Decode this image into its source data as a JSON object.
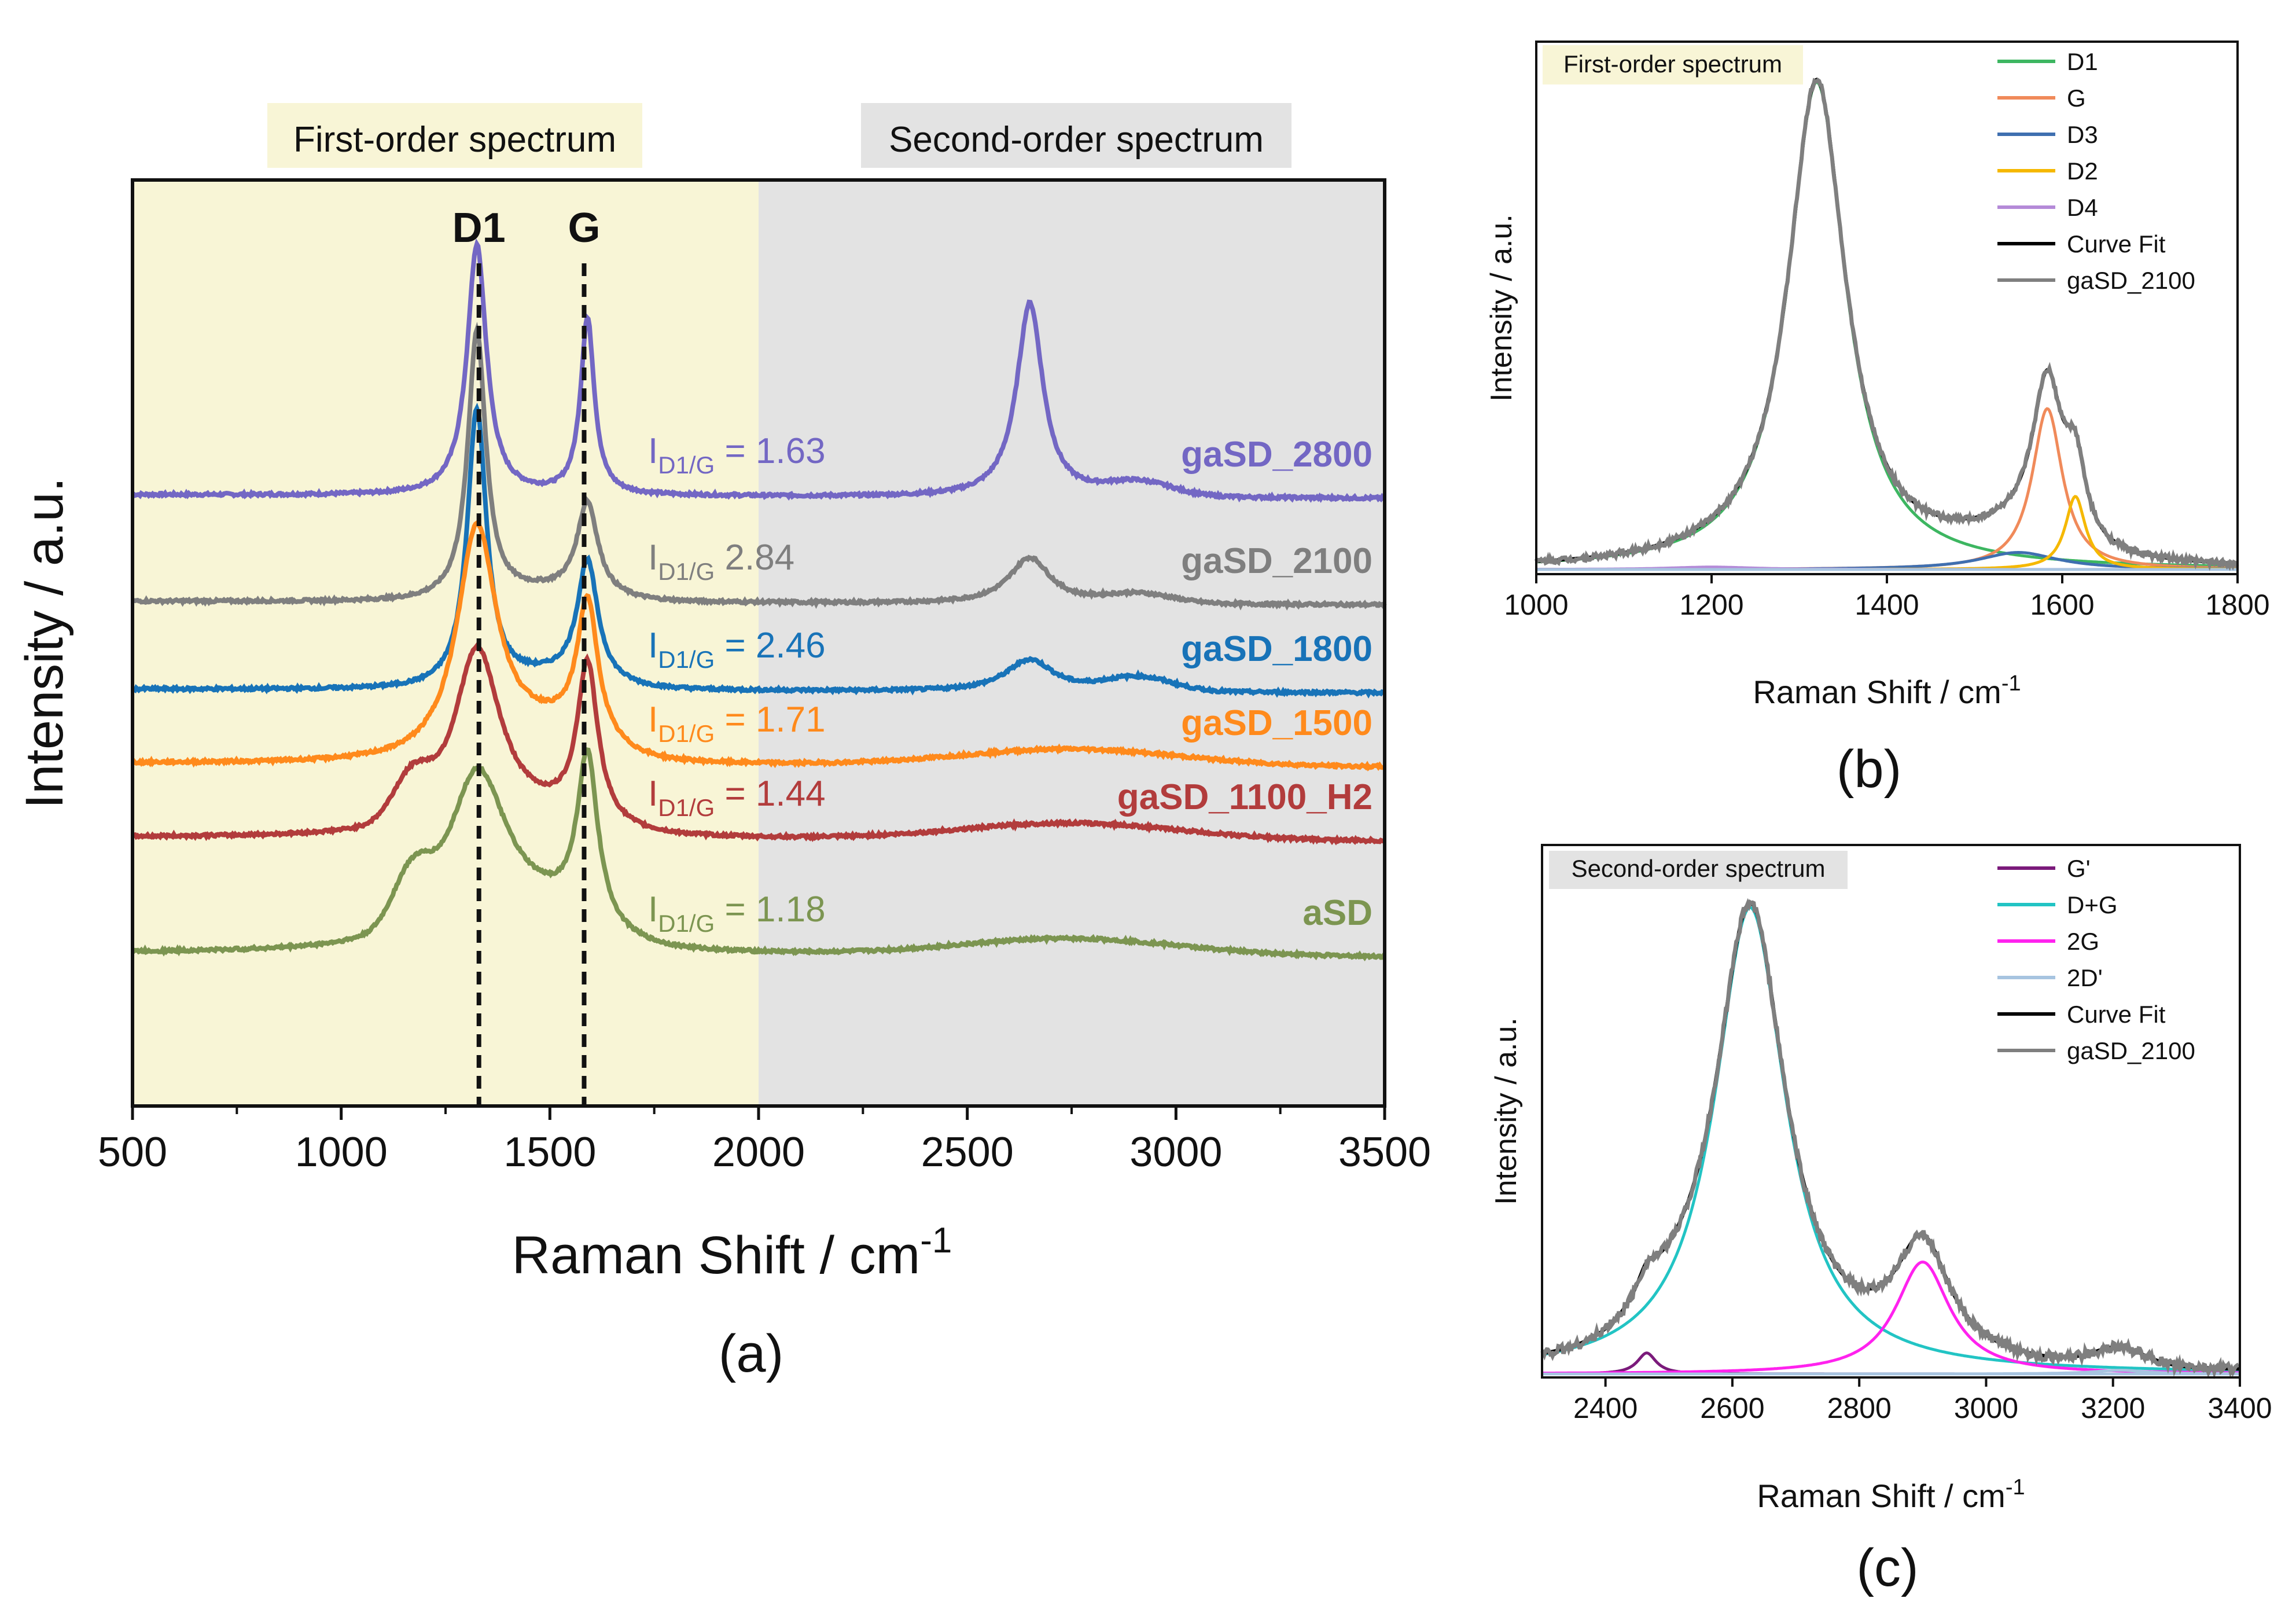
{
  "chart_data": [
    {
      "panel": "(a)",
      "type": "line",
      "xlabel": "Raman Shift / cm",
      "xlabel_sup": "-1",
      "ylabel": "Intensity / a.u.",
      "xlim": [
        500,
        3500
      ],
      "xticks": [
        "500",
        "1000",
        "1500",
        "2000",
        "2500",
        "3000",
        "3500"
      ],
      "regions": [
        {
          "label": "First-order spectrum",
          "from": 500,
          "to": 2000,
          "color": "#f8f5d6"
        },
        {
          "label": "Second-order spectrum",
          "from": 2000,
          "to": 3500,
          "color": "#e3e3e3"
        }
      ],
      "peak_markers": [
        {
          "label": "D1",
          "x": 1330
        },
        {
          "label": "G",
          "x": 1582
        }
      ],
      "ratio_prefix": "I",
      "ratio_sub": "D1/G",
      "series": [
        {
          "name": "gaSD_2800",
          "ratio": "= 1.63",
          "color": "#7367c4",
          "baseline": 0.66,
          "d1w": 28,
          "d1h": 0.27,
          "gw": 20,
          "gh": 0.19,
          "bump": 0.0,
          "shoulder": 0.0,
          "p2d": 0.21,
          "p2dw": 38,
          "pdg": 0.015
        },
        {
          "name": "gaSD_2100",
          "ratio": "2.84",
          "color": "#7f7f7f",
          "baseline": 0.545,
          "d1w": 26,
          "d1h": 0.29,
          "gw": 30,
          "gh": 0.1,
          "bump": 0.01,
          "shoulder": 0.0,
          "p2d": 0.05,
          "p2dw": 60,
          "pdg": 0.01
        },
        {
          "name": "gaSD_1800",
          "ratio": "= 2.46",
          "color": "#1873b8",
          "baseline": 0.45,
          "d1w": 28,
          "d1h": 0.3,
          "gw": 30,
          "gh": 0.13,
          "bump": 0.012,
          "shoulder": 0.0,
          "p2d": 0.035,
          "p2dw": 70,
          "pdg": 0.015
        },
        {
          "name": "gaSD_1500",
          "ratio": "= 1.71",
          "color": "#ff8a1c",
          "baseline": 0.37,
          "d1w": 58,
          "d1h": 0.25,
          "gw": 30,
          "gh": 0.15,
          "bump": 0.03,
          "shoulder": 0.0,
          "p2d": 0.0,
          "p2dw": 300,
          "pdg": 0.0
        },
        {
          "name": "gaSD_1100_H2",
          "ratio": "= 1.44",
          "color": "#b23c3c",
          "baseline": 0.29,
          "d1w": 70,
          "d1h": 0.2,
          "gw": 30,
          "gh": 0.17,
          "bump": 0.015,
          "shoulder": 0.045,
          "p2d": 0.0,
          "p2dw": 300,
          "pdg": 0.0
        },
        {
          "name": "aSD",
          "ratio": "= 1.18",
          "color": "#7c9551",
          "baseline": 0.165,
          "d1w": 90,
          "d1h": 0.19,
          "gw": 30,
          "gh": 0.18,
          "bump": 0.03,
          "shoulder": 0.055,
          "p2d": 0.0,
          "p2dw": 300,
          "pdg": 0.0
        }
      ]
    },
    {
      "panel": "(b)",
      "type": "line",
      "title_box": "First-order spectrum",
      "xlabel": "Raman Shift / cm",
      "xlabel_sup": "-1",
      "ylabel": "Intensity / a.u.",
      "xlim": [
        1000,
        1800
      ],
      "xticks": [
        "1000",
        "1200",
        "1400",
        "1600",
        "1800"
      ],
      "legend": [
        {
          "name": "D1",
          "color": "#3db661"
        },
        {
          "name": "G",
          "color": "#f08a5a"
        },
        {
          "name": "D3",
          "color": "#3f6fb0"
        },
        {
          "name": "D2",
          "color": "#f5b800"
        },
        {
          "name": "D4",
          "color": "#b48ad8"
        },
        {
          "name": "Curve Fit",
          "color": "#000000"
        },
        {
          "name": "gaSD_2100",
          "color": "#7f7f7f"
        }
      ],
      "components": [
        {
          "name": "D1",
          "center": 1320,
          "width": 40,
          "height": 1.0,
          "color": "#3db661"
        },
        {
          "name": "G",
          "center": 1583,
          "width": 21,
          "height": 0.33,
          "color": "#f08a5a"
        },
        {
          "name": "D3",
          "center": 1550,
          "width": 55,
          "height": 0.035,
          "color": "#3f6fb0"
        },
        {
          "name": "D2",
          "center": 1615,
          "width": 14,
          "height": 0.15,
          "color": "#f5b800"
        },
        {
          "name": "D4",
          "center": 1200,
          "width": 60,
          "height": 0.005,
          "color": "#b48ad8"
        }
      ]
    },
    {
      "panel": "(c)",
      "type": "line",
      "title_box": "Second-order spectrum",
      "xlabel": "Raman Shift / cm",
      "xlabel_sup": "-1",
      "ylabel": "Intensity / a.u.",
      "xlim": [
        2300,
        3400
      ],
      "xticks": [
        "2400",
        "2600",
        "2800",
        "3000",
        "3200",
        "3400"
      ],
      "legend": [
        {
          "name": "G'",
          "color": "#7b1a7b"
        },
        {
          "name": "D+G",
          "color": "#22c4c4"
        },
        {
          "name": "2G",
          "color": "#ff22ee"
        },
        {
          "name": "2D'",
          "color": "#a7c4e0"
        },
        {
          "name": "Curve Fit",
          "color": "#000000"
        },
        {
          "name": "gaSD_2100",
          "color": "#7f7f7f"
        }
      ],
      "components": [
        {
          "name": "G'",
          "center": 2465,
          "width": 18,
          "height": 0.045,
          "color": "#7b1a7b"
        },
        {
          "name": "D+G",
          "center": 2628,
          "width": 68,
          "height": 1.0,
          "color": "#22c4c4"
        },
        {
          "name": "2G",
          "center": 2900,
          "width": 52,
          "height": 0.24,
          "color": "#ff22ee"
        },
        {
          "name": "2D'",
          "center": 3210,
          "width": 50,
          "height": 0.008,
          "color": "#a7c4e0"
        }
      ]
    }
  ]
}
